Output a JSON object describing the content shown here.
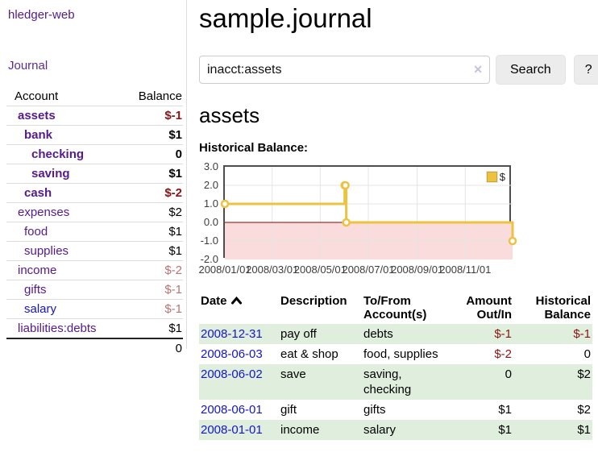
{
  "app": {
    "title": "hledger-web"
  },
  "nav": {
    "journal": "Journal"
  },
  "sidebar": {
    "columns": {
      "account": "Account",
      "balance": "Balance"
    },
    "accounts": [
      {
        "name": "assets",
        "balance": "$-1"
      },
      {
        "name": "bank",
        "balance": "$1"
      },
      {
        "name": "checking",
        "balance": "0"
      },
      {
        "name": "saving",
        "balance": "$1"
      },
      {
        "name": "cash",
        "balance": "$-2"
      },
      {
        "name": "expenses",
        "balance": "$2"
      },
      {
        "name": "food",
        "balance": "$1"
      },
      {
        "name": "supplies",
        "balance": "$1"
      },
      {
        "name": "income",
        "balance": "$-2"
      },
      {
        "name": "gifts",
        "balance": "$-1"
      },
      {
        "name": "salary",
        "balance": "$-1"
      },
      {
        "name": "liabilities:debts",
        "balance": "$1"
      }
    ],
    "total": "0"
  },
  "header": {
    "title": "sample.journal"
  },
  "search": {
    "value": "inacct:assets",
    "clear": "✕",
    "button": "Search",
    "help": "?"
  },
  "account_page": {
    "heading": "assets",
    "chart_title": "Historical Balance:"
  },
  "chart_data": {
    "type": "line",
    "step": true,
    "title": "Historical Balance:",
    "series": [
      {
        "name": "$",
        "color": "#edc240",
        "points": [
          [
            "2008-01-01",
            1
          ],
          [
            "2008-06-01",
            2
          ],
          [
            "2008-06-02",
            2
          ],
          [
            "2008-06-03",
            0
          ],
          [
            "2008-12-31",
            -1
          ]
        ]
      }
    ],
    "xrange": [
      "2008-01-01",
      "2008-12-31"
    ],
    "ylim": [
      -2,
      3
    ],
    "yticks": [
      "3.0",
      "2.0",
      "1.0",
      "0.0",
      "-1.0",
      "-2.0"
    ],
    "xticks": [
      "2008/01/01",
      "2008/03/01",
      "2008/05/01",
      "2008/07/01",
      "2008/09/01",
      "2008/11/01"
    ],
    "legend_position": "top-right",
    "grid": true,
    "zero_line_color": "#8b0000",
    "negative_region_color": "#fadcdc"
  },
  "register": {
    "headers": {
      "date": "Date",
      "description": "Description",
      "accounts": "To/From Account(s)",
      "amount": "Amount Out/In",
      "balance": "Historical Balance"
    },
    "rows": [
      {
        "date": "2008-12-31",
        "description": "pay off",
        "accounts": "debts",
        "amount": "$-1",
        "balance": "$-1"
      },
      {
        "date": "2008-06-03",
        "description": "eat & shop",
        "accounts": "food, supplies",
        "amount": "$-2",
        "balance": "0"
      },
      {
        "date": "2008-06-02",
        "description": "save",
        "accounts": "saving, checking",
        "amount": "0",
        "balance": "$2"
      },
      {
        "date": "2008-06-01",
        "description": "gift",
        "accounts": "gifts",
        "amount": "$1",
        "balance": "$2"
      },
      {
        "date": "2008-01-01",
        "description": "income",
        "accounts": "salary",
        "amount": "$1",
        "balance": "$1"
      }
    ]
  },
  "colors": {
    "accent_purple": "#551a8b",
    "link_blue": "#1515cc",
    "negative_red": "#8b1414",
    "soft_negative_red": "#bb7272",
    "row_green": "#dfeedd",
    "chart_gold": "#edc240",
    "zero_line": "#8b0000",
    "negative_region": "#fadcdc"
  }
}
